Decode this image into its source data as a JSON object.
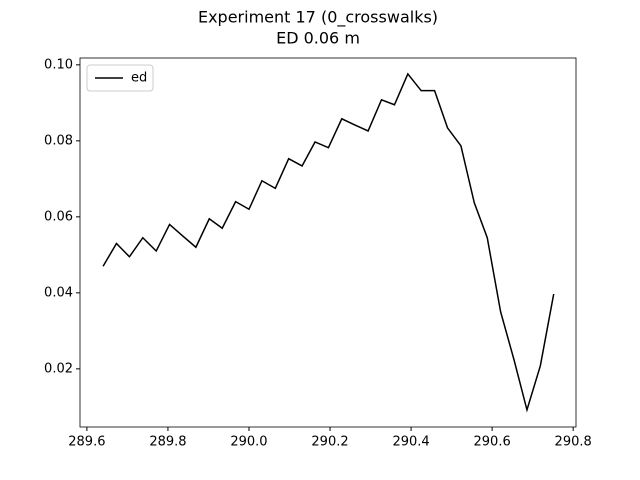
{
  "chart_data": {
    "type": "line",
    "title": "Experiment 17 (0_crosswalks)",
    "subtitle": "ED 0.06 m",
    "x": [
      289.64,
      289.673,
      289.705,
      289.738,
      289.771,
      289.804,
      289.836,
      289.869,
      289.902,
      289.934,
      289.967,
      290.0,
      290.032,
      290.065,
      290.098,
      290.131,
      290.163,
      290.196,
      290.229,
      290.261,
      290.294,
      290.327,
      290.359,
      290.392,
      290.425,
      290.458,
      290.49,
      290.523,
      290.556,
      290.588,
      290.621,
      290.654,
      290.686,
      290.719,
      290.752
    ],
    "series": [
      {
        "name": "ed",
        "color": "#000000",
        "values": [
          0.047,
          0.053,
          0.0495,
          0.0545,
          0.051,
          0.058,
          0.055,
          0.052,
          0.0595,
          0.057,
          0.064,
          0.062,
          0.0695,
          0.0675,
          0.0753,
          0.0734,
          0.0797,
          0.0782,
          0.0858,
          0.0842,
          0.0826,
          0.0908,
          0.0895,
          0.0976,
          0.0932,
          0.0932,
          0.0834,
          0.0787,
          0.0637,
          0.0545,
          0.035,
          0.0224,
          0.0092,
          0.0208,
          0.0397
        ]
      }
    ],
    "xlim": [
      289.583,
      290.807
    ],
    "ylim": [
      0.0047,
      0.1018
    ],
    "xticks": [
      289.6,
      289.8,
      {
        "value": 290,
        "label": "290.0"
      },
      290.2,
      290.4,
      290.6,
      290.8
    ],
    "yticks": [
      0.02,
      0.04,
      0.06,
      0.08,
      {
        "value": 0.1,
        "label": "0.10"
      }
    ],
    "grid": false,
    "legend": "upper left"
  }
}
